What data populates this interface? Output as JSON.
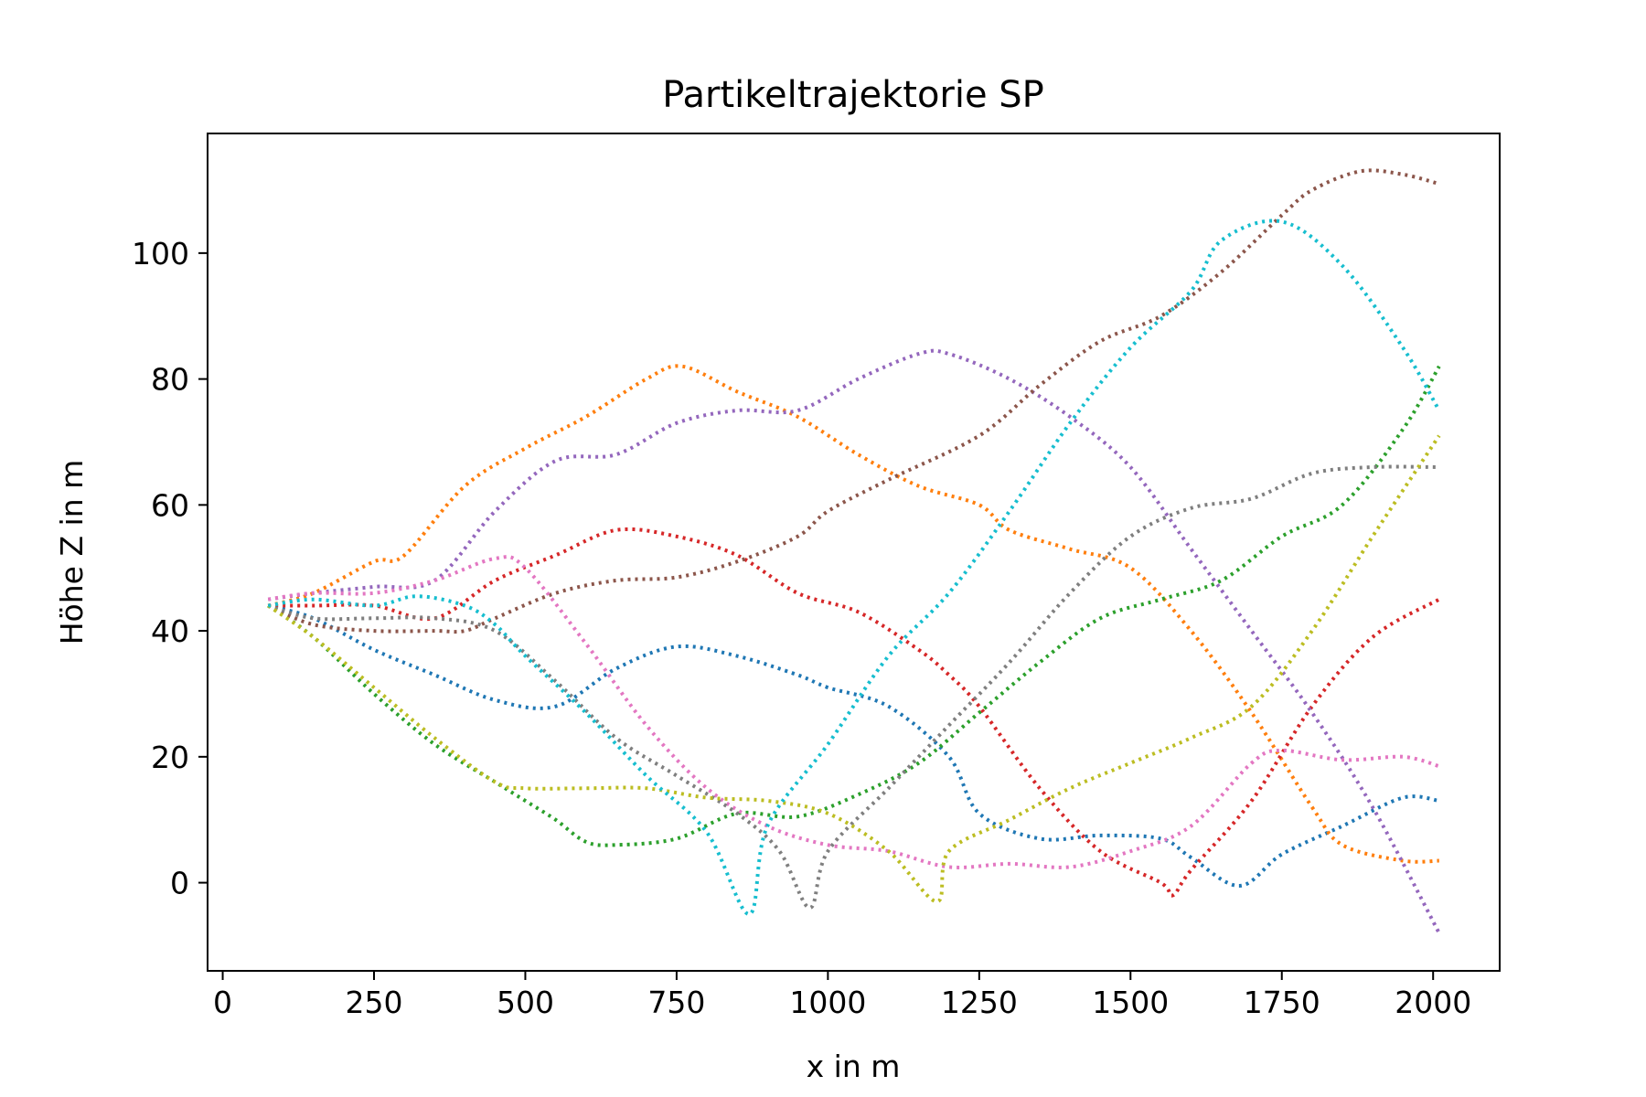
{
  "chart_data": {
    "type": "line",
    "title": "Partikeltrajektorie SP",
    "xlabel": "x in m",
    "ylabel": "Höhe Z in m",
    "xlim": [
      -25,
      2110
    ],
    "ylim": [
      -14,
      119
    ],
    "xticks": [
      0,
      250,
      500,
      750,
      1000,
      1250,
      1500,
      1750,
      2000
    ],
    "yticks": [
      0,
      20,
      40,
      60,
      80,
      100
    ],
    "grid": false,
    "line_style": "dotted",
    "series": [
      {
        "color": "#1f77b4",
        "x": [
          75,
          150,
          250,
          350,
          450,
          550,
          650,
          750,
          850,
          950,
          1000,
          1100,
          1200,
          1250,
          1350,
          1450,
          1550,
          1600,
          1680,
          1750,
          1850,
          1950,
          2010
        ],
        "y": [
          44,
          42,
          37,
          33,
          29,
          28,
          34,
          37.5,
          36,
          33,
          31,
          28,
          20,
          11,
          7,
          7.5,
          7,
          4,
          -0.5,
          4.5,
          9,
          13.5,
          13
        ]
      },
      {
        "color": "#ff7f0e",
        "x": [
          75,
          150,
          250,
          300,
          400,
          500,
          600,
          700,
          760,
          850,
          950,
          1050,
          1150,
          1250,
          1300,
          1400,
          1500,
          1600,
          1700,
          1800,
          1850,
          1950,
          2010
        ],
        "y": [
          44,
          46,
          51,
          52,
          63,
          69,
          74,
          80,
          82,
          78,
          74,
          68,
          63,
          60,
          56,
          53,
          50,
          40,
          27,
          12,
          6,
          3.5,
          3.5
        ]
      },
      {
        "color": "#2ca02c",
        "x": [
          75,
          150,
          250,
          350,
          450,
          500,
          550,
          600,
          650,
          750,
          850,
          950,
          1050,
          1150,
          1250,
          1350,
          1450,
          1550,
          1650,
          1750,
          1850,
          1950,
          2010
        ],
        "y": [
          44,
          39,
          30,
          22,
          16,
          13,
          10,
          6.5,
          6,
          7,
          11,
          10.5,
          14,
          19,
          27,
          35,
          42,
          45,
          48,
          55,
          60,
          72,
          82
        ]
      },
      {
        "color": "#d62728",
        "x": [
          75,
          150,
          250,
          350,
          450,
          550,
          650,
          750,
          850,
          950,
          1050,
          1150,
          1200,
          1250,
          1350,
          1450,
          1550,
          1570,
          1600,
          1700,
          1800,
          1900,
          2010
        ],
        "y": [
          44,
          44,
          44,
          42,
          48,
          52,
          56,
          55,
          52,
          46,
          43,
          37,
          33,
          28,
          15,
          5,
          0,
          -2,
          2,
          13,
          28,
          39,
          45
        ]
      },
      {
        "color": "#9467bd",
        "x": [
          75,
          150,
          250,
          350,
          450,
          550,
          650,
          750,
          850,
          950,
          1050,
          1150,
          1200,
          1300,
          1400,
          1500,
          1600,
          1700,
          1800,
          1900,
          2010
        ],
        "y": [
          45,
          46,
          47,
          48,
          59,
          67,
          68,
          73,
          75,
          75,
          80,
          84,
          84,
          80,
          74,
          66,
          53,
          40,
          27,
          12,
          -8
        ]
      },
      {
        "color": "#8c564b",
        "x": [
          75,
          150,
          250,
          350,
          400,
          450,
          550,
          650,
          750,
          850,
          950,
          1000,
          1100,
          1250,
          1350,
          1450,
          1550,
          1650,
          1750,
          1800,
          1880,
          1950,
          2010
        ],
        "y": [
          44,
          41,
          40,
          40,
          40,
          42,
          46,
          48,
          48.5,
          51,
          55,
          59,
          64,
          71,
          79,
          86,
          90,
          97,
          106,
          110,
          113,
          112.5,
          111
        ]
      },
      {
        "color": "#e377c2",
        "x": [
          75,
          150,
          250,
          350,
          450,
          500,
          600,
          700,
          800,
          900,
          1000,
          1100,
          1200,
          1300,
          1400,
          1500,
          1600,
          1700,
          1750,
          1850,
          1950,
          2010
        ],
        "y": [
          45,
          46,
          46,
          48,
          51.5,
          50,
          38,
          25,
          15,
          9,
          6,
          5,
          2.5,
          3,
          2.5,
          5,
          9,
          19,
          21,
          19.5,
          20,
          18.5
        ]
      },
      {
        "color": "#7f7f7f",
        "x": [
          75,
          150,
          250,
          350,
          450,
          550,
          650,
          750,
          850,
          920,
          970,
          1000,
          1100,
          1200,
          1300,
          1400,
          1500,
          1600,
          1700,
          1800,
          1900,
          2010
        ],
        "y": [
          44,
          42,
          42,
          42,
          40,
          32,
          23,
          17,
          11,
          5,
          -4,
          5,
          15,
          25,
          35,
          46,
          55,
          59.5,
          61,
          65,
          66,
          66
        ]
      },
      {
        "color": "#bcbd22",
        "x": [
          75,
          150,
          250,
          350,
          450,
          500,
          600,
          700,
          800,
          900,
          1000,
          1100,
          1180,
          1200,
          1300,
          1400,
          1500,
          1600,
          1700,
          1800,
          1900,
          2010
        ],
        "y": [
          44,
          39,
          31,
          23,
          16,
          15,
          15,
          15,
          13.5,
          13,
          11,
          5,
          -3,
          5,
          10,
          15,
          19,
          23,
          28,
          40,
          55,
          71
        ]
      },
      {
        "color": "#17becf",
        "x": [
          75,
          150,
          250,
          320,
          400,
          450,
          500,
          600,
          700,
          800,
          870,
          900,
          1000,
          1100,
          1200,
          1300,
          1400,
          1500,
          1600,
          1650,
          1750,
          1850,
          1950,
          2010
        ],
        "y": [
          44,
          45,
          44,
          45.5,
          44,
          41,
          36,
          27,
          17,
          8,
          -5,
          9,
          22,
          36,
          46,
          59,
          73,
          85,
          94,
          102,
          105,
          98,
          85,
          75
        ]
      }
    ]
  }
}
